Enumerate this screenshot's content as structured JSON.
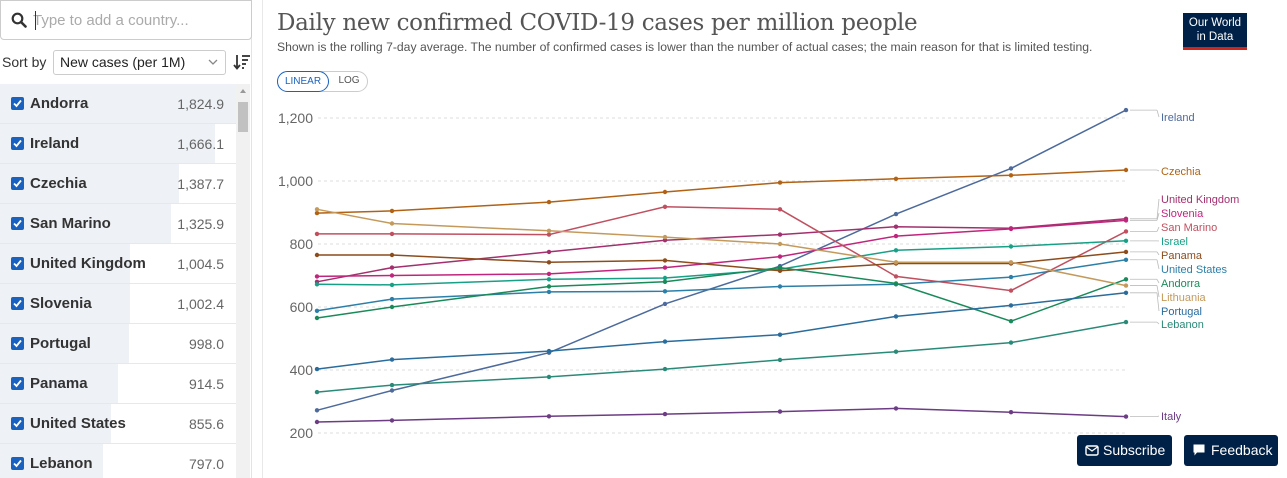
{
  "search": {
    "placeholder": "Type to add a country..."
  },
  "sort": {
    "label": "Sort by",
    "selected": "New cases (per 1M)"
  },
  "countries": [
    {
      "name": "Andorra",
      "value": "1,824.9",
      "checked": true
    },
    {
      "name": "Ireland",
      "value": "1,666.1",
      "checked": true
    },
    {
      "name": "Czechia",
      "value": "1,387.7",
      "checked": true
    },
    {
      "name": "San Marino",
      "value": "1,325.9",
      "checked": true
    },
    {
      "name": "United Kingdom",
      "value": "1,004.5",
      "checked": true
    },
    {
      "name": "Slovenia",
      "value": "1,002.4",
      "checked": true
    },
    {
      "name": "Portugal",
      "value": "998.0",
      "checked": true
    },
    {
      "name": "Panama",
      "value": "914.5",
      "checked": true
    },
    {
      "name": "United States",
      "value": "855.6",
      "checked": true
    },
    {
      "name": "Lebanon",
      "value": "797.0",
      "checked": true
    }
  ],
  "header": {
    "title": "Daily new confirmed COVID-19 cases per million people",
    "subtitle": "Shown is the rolling 7-day average. The number of confirmed cases is lower than the number of actual cases; the main reason for that is limited testing.",
    "logo_line1": "Our World",
    "logo_line2": "in Data"
  },
  "scale_toggle": {
    "linear": "LINEAR",
    "log": "LOG",
    "active": "LINEAR"
  },
  "buttons": {
    "subscribe": "Subscribe",
    "feedback": "Feedback"
  },
  "colors": {
    "brand": "#002147",
    "accent": "#ce261e",
    "checkbox": "#1a62bf"
  },
  "chart_data": {
    "type": "line",
    "title": "Daily new confirmed COVID-19 cases per million people",
    "xlabel": "",
    "ylabel": "",
    "ylim": [
      200,
      1250
    ],
    "yticks": [
      200,
      400,
      600,
      800,
      1000,
      1200
    ],
    "ytick_labels": [
      "200",
      "400",
      "600",
      "800",
      "1,000",
      "1,200"
    ],
    "grid": true,
    "legend": "right (labels at line ends)",
    "x": [
      0,
      1,
      2,
      3,
      4,
      5,
      6,
      7
    ],
    "series": [
      {
        "name": "Ireland",
        "color": "#4c6a9c",
        "values": [
          272,
          335,
          455,
          610,
          730,
          895,
          1040,
          1225
        ]
      },
      {
        "name": "Czechia",
        "color": "#b16214",
        "values": [
          898,
          905,
          933,
          965,
          995,
          1007,
          1018,
          1035
        ]
      },
      {
        "name": "United Kingdom",
        "color": "#a2306e",
        "values": [
          680,
          725,
          775,
          812,
          830,
          855,
          850,
          880
        ]
      },
      {
        "name": "Slovenia",
        "color": "#c0257d",
        "values": [
          697,
          700,
          705,
          725,
          760,
          825,
          848,
          875
        ]
      },
      {
        "name": "San Marino",
        "color": "#c05060",
        "values": [
          832,
          832,
          830,
          918,
          910,
          697,
          652,
          840
        ]
      },
      {
        "name": "Israel",
        "color": "#18a087",
        "values": [
          672,
          670,
          688,
          692,
          720,
          780,
          792,
          810
        ]
      },
      {
        "name": "Panama",
        "color": "#8c4c1c",
        "values": [
          765,
          765,
          742,
          748,
          715,
          738,
          738,
          775
        ]
      },
      {
        "name": "United States",
        "color": "#2c7fa8",
        "values": [
          588,
          625,
          648,
          650,
          665,
          672,
          695,
          750
        ]
      },
      {
        "name": "Andorra",
        "color": "#1a8a5a",
        "values": [
          565,
          600,
          665,
          680,
          725,
          675,
          555,
          688
        ]
      },
      {
        "name": "Lithuania",
        "color": "#c49a5c",
        "values": [
          910,
          865,
          842,
          822,
          800,
          742,
          742,
          668
        ]
      },
      {
        "name": "Portugal",
        "color": "#2a6c9c",
        "values": [
          403,
          433,
          460,
          490,
          512,
          570,
          605,
          645
        ]
      },
      {
        "name": "Lebanon",
        "color": "#2a8a78",
        "values": [
          330,
          352,
          378,
          403,
          432,
          458,
          487,
          552
        ]
      },
      {
        "name": "Italy",
        "color": "#6c3c84",
        "values": [
          235,
          240,
          253,
          260,
          268,
          278,
          266,
          252
        ]
      }
    ]
  }
}
